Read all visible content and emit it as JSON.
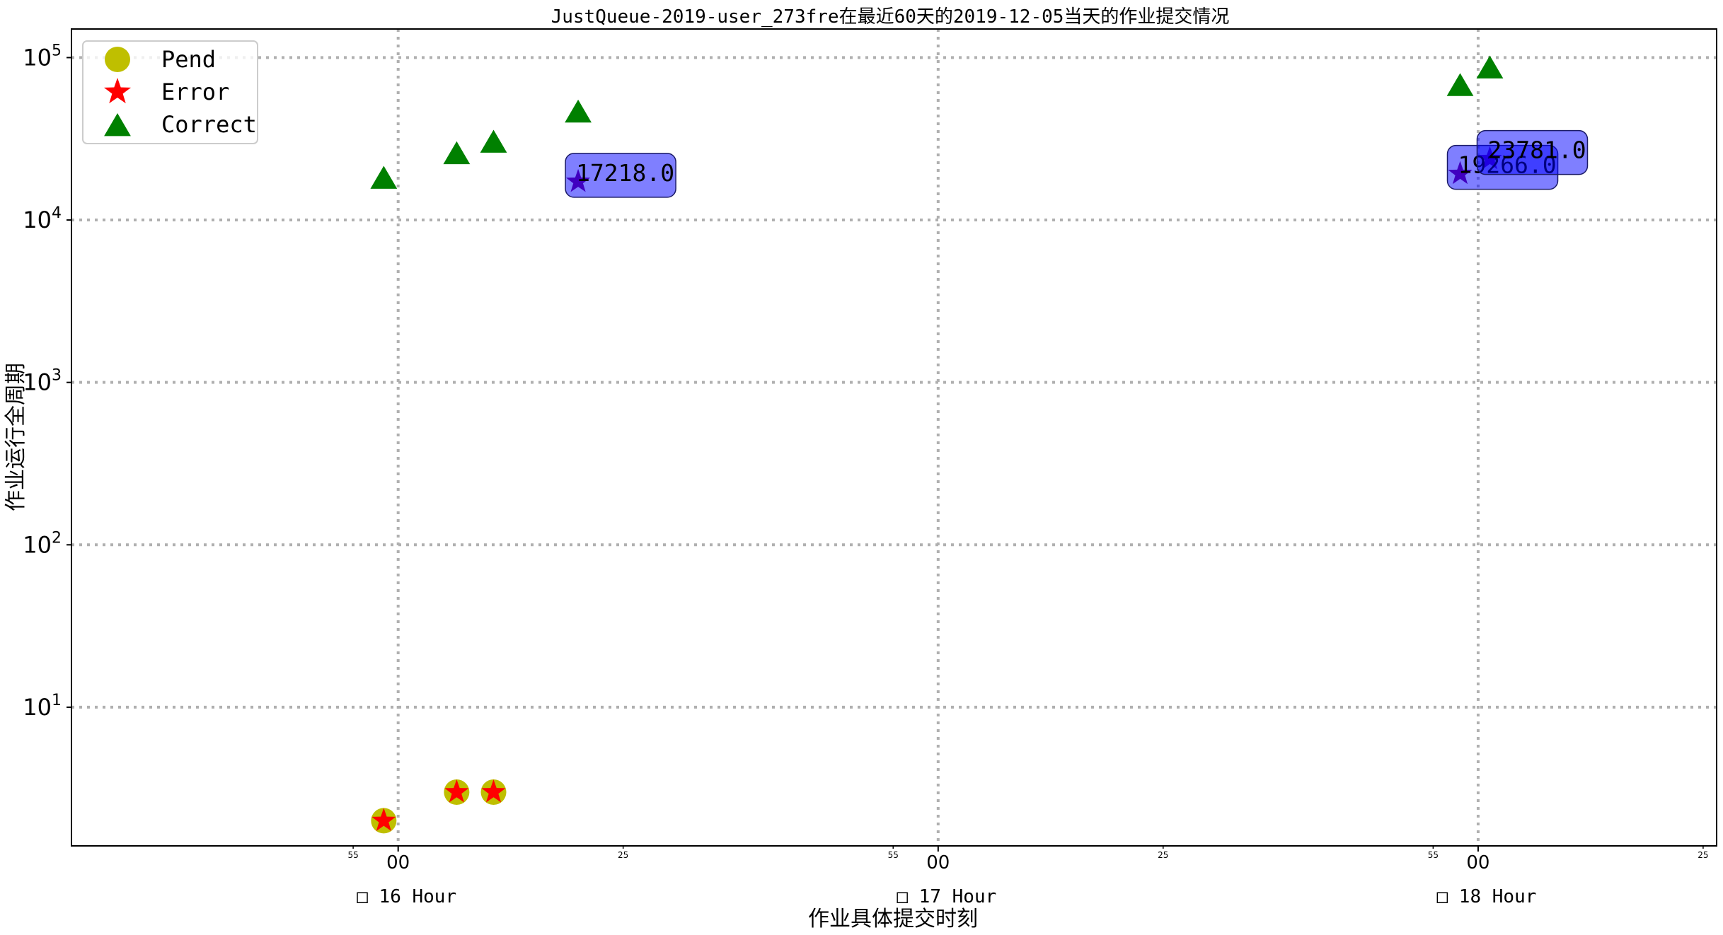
{
  "chart_data": {
    "type": "scatter",
    "title": "JustQueue-2019-user_273fre在最近60天的2019-12-05当天的作业提交情况",
    "xlabel": "作业具体提交时刻",
    "ylabel": "作业运行全周期",
    "yscale": "log",
    "ylim": [
      1.4,
      150000
    ],
    "xlim_minutes_of_day": [
      923.7,
      1106.5
    ],
    "y_ticks": [
      {
        "value": 10,
        "base": "10",
        "exp": "1"
      },
      {
        "value": 100,
        "base": "10",
        "exp": "2"
      },
      {
        "value": 1000,
        "base": "10",
        "exp": "3"
      },
      {
        "value": 10000,
        "base": "10",
        "exp": "4"
      },
      {
        "value": 100000,
        "base": "10",
        "exp": "5"
      }
    ],
    "x_major_ticks": [
      {
        "minute": 960,
        "label": "00"
      },
      {
        "minute": 1020,
        "label": "00"
      },
      {
        "minute": 1080,
        "label": "00"
      }
    ],
    "x_minor_ticks": [
      {
        "minute": 955,
        "label": "55"
      },
      {
        "minute": 985,
        "label": "25"
      },
      {
        "minute": 1015,
        "label": "55"
      },
      {
        "minute": 1045,
        "label": "25"
      },
      {
        "minute": 1075,
        "label": "55"
      },
      {
        "minute": 1105,
        "label": "25"
      }
    ],
    "hour_labels": [
      {
        "minute": 960,
        "box": "□",
        "label": "16 Hour"
      },
      {
        "minute": 1020,
        "box": "□",
        "label": "17 Hour"
      },
      {
        "minute": 1080,
        "box": "□",
        "label": "18 Hour"
      }
    ],
    "grid": true,
    "legend_position": "upper-left",
    "series": [
      {
        "name": "Pend",
        "marker": "circle",
        "color": "#bfbf00",
        "points": [
          {
            "x": 958.4,
            "y": 2
          },
          {
            "x": 966.5,
            "y": 3
          },
          {
            "x": 970.6,
            "y": 3
          }
        ]
      },
      {
        "name": "Error",
        "marker": "star",
        "color": "#ff0000",
        "points": [
          {
            "x": 958.4,
            "y": 2
          },
          {
            "x": 966.5,
            "y": 3
          },
          {
            "x": 970.6,
            "y": 3
          },
          {
            "x": 980.0,
            "y": 17218
          },
          {
            "x": 1078.0,
            "y": 19266
          },
          {
            "x": 1081.3,
            "y": 23781
          }
        ]
      },
      {
        "name": "Correct",
        "marker": "triangle",
        "color": "#008000",
        "points": [
          {
            "x": 958.4,
            "y": 18000
          },
          {
            "x": 966.5,
            "y": 25500
          },
          {
            "x": 970.6,
            "y": 30000
          },
          {
            "x": 980.0,
            "y": 46000
          },
          {
            "x": 1078.0,
            "y": 67000
          },
          {
            "x": 1081.3,
            "y": 86000
          }
        ]
      }
    ],
    "annotations": [
      {
        "x": 980.0,
        "y": 17218,
        "text": "17218.0"
      },
      {
        "x": 1078.0,
        "y": 19266,
        "text": "19266.0"
      },
      {
        "x": 1081.3,
        "y": 23781,
        "text": "23781.0"
      }
    ],
    "highlight_color": "#800080",
    "annotation_box_color": "#0000ff"
  }
}
